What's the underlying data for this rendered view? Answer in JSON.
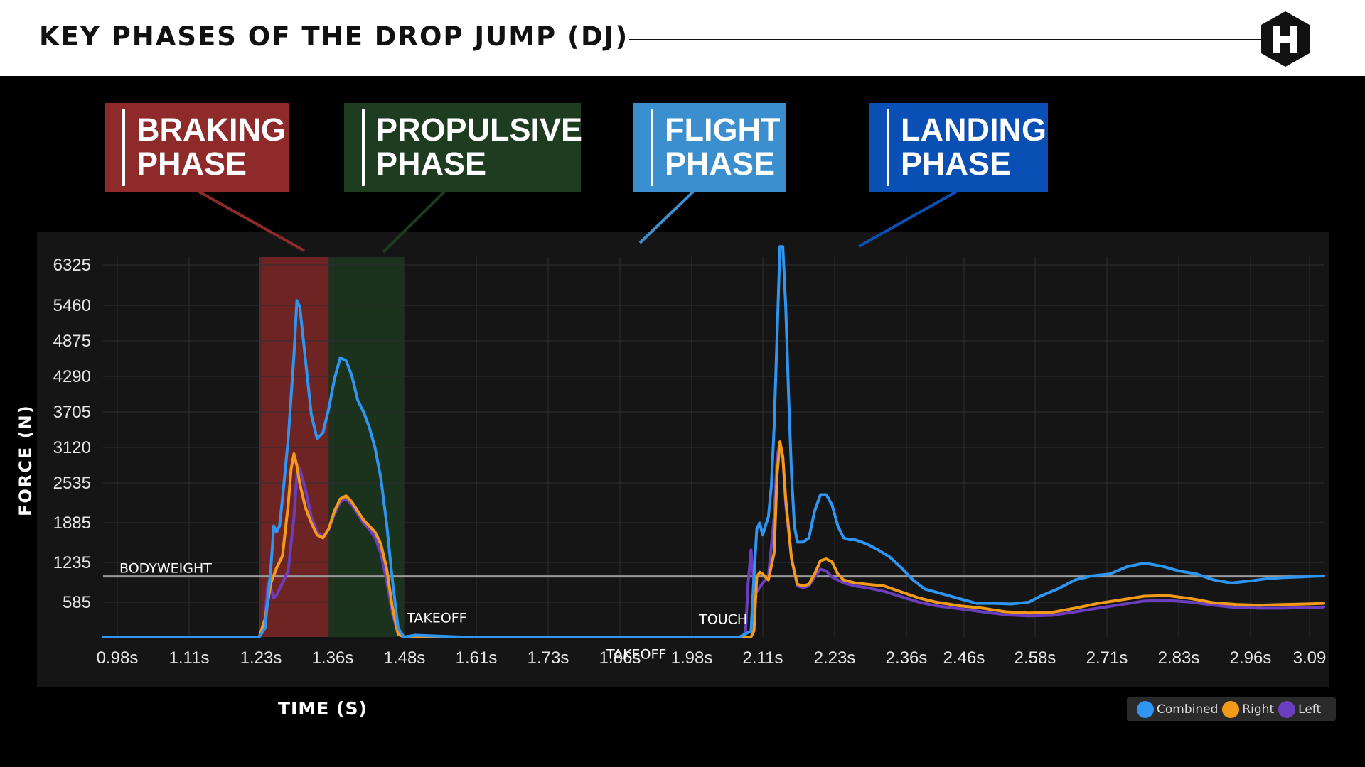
{
  "header": {
    "title": "KEY PHASES OF THE DROP JUMP (DJ)",
    "logo": "hexagon-h-logo"
  },
  "phases": [
    {
      "label": "BRAKING\nPHASE",
      "color": "#8e2a2a"
    },
    {
      "label": "PROPULSIVE\nPHASE",
      "color": "#1e3c20"
    },
    {
      "label": "FLIGHT\nPHASE",
      "color": "#3b8fce"
    },
    {
      "label": "LANDING\nPHASE",
      "color": "#0a4fb3"
    }
  ],
  "chart_data": {
    "type": "line",
    "ylabel": "FORCE (N)",
    "xlabel": "TIME (S)",
    "y_ticks": [
      "6325",
      "5460",
      "4875",
      "4290",
      "3705",
      "3120",
      "2535",
      "1885",
      "1235",
      "585"
    ],
    "x_ticks": [
      "0.98s",
      "1.11s",
      "1.23s",
      "1.36s",
      "1.48s",
      "1.61s",
      "1.73s",
      "1.86s",
      "1.98s",
      "2.11s",
      "2.23s",
      "2.36s",
      "2.46s",
      "2.58s",
      "2.71s",
      "2.83s",
      "2.96s",
      "3.09"
    ],
    "ylim": [
      0,
      6325
    ],
    "xlim": [
      0.98,
      3.09
    ],
    "grid": true,
    "legend_position": "bottom-right",
    "bodyweight": {
      "label": "BODYWEIGHT",
      "value": 1010
    },
    "shaded_regions": [
      {
        "x_start": 1.25,
        "x_end": 1.37,
        "color": "#8e2a2a"
      },
      {
        "x_start": 1.37,
        "x_end": 1.5,
        "color": "#1e3c20"
      }
    ],
    "annotations": [
      {
        "text": "TAKEOFF",
        "x": 1.505,
        "y": 240
      },
      {
        "text": "TOUCH",
        "x": 2.01,
        "y": 220
      },
      {
        "text": "TAKEOFF",
        "x": 1.85,
        "y": -360
      }
    ],
    "series": [
      {
        "name": "Combined",
        "color": "#2e95f0",
        "points": [
          [
            0.98,
            0
          ],
          [
            1.25,
            0
          ],
          [
            1.26,
            150
          ],
          [
            1.27,
            1150
          ],
          [
            1.275,
            1850
          ],
          [
            1.28,
            1750
          ],
          [
            1.285,
            1850
          ],
          [
            1.29,
            2300
          ],
          [
            1.3,
            3300
          ],
          [
            1.31,
            4700
          ],
          [
            1.315,
            5600
          ],
          [
            1.32,
            5500
          ],
          [
            1.33,
            4600
          ],
          [
            1.34,
            3700
          ],
          [
            1.35,
            3300
          ],
          [
            1.36,
            3400
          ],
          [
            1.37,
            3800
          ],
          [
            1.38,
            4300
          ],
          [
            1.39,
            4650
          ],
          [
            1.4,
            4600
          ],
          [
            1.41,
            4350
          ],
          [
            1.42,
            3950
          ],
          [
            1.43,
            3750
          ],
          [
            1.44,
            3500
          ],
          [
            1.45,
            3150
          ],
          [
            1.46,
            2650
          ],
          [
            1.47,
            1900
          ],
          [
            1.48,
            950
          ],
          [
            1.49,
            150
          ],
          [
            1.5,
            0
          ],
          [
            1.52,
            30
          ],
          [
            1.6,
            0
          ],
          [
            2.08,
            0
          ],
          [
            2.1,
            100
          ],
          [
            2.105,
            1000
          ],
          [
            2.11,
            1800
          ],
          [
            2.115,
            1900
          ],
          [
            2.12,
            1700
          ],
          [
            2.125,
            1850
          ],
          [
            2.13,
            2000
          ],
          [
            2.135,
            2500
          ],
          [
            2.14,
            3500
          ],
          [
            2.145,
            5000
          ],
          [
            2.15,
            6500
          ],
          [
            2.155,
            6500
          ],
          [
            2.16,
            5500
          ],
          [
            2.165,
            4000
          ],
          [
            2.17,
            2700
          ],
          [
            2.175,
            1850
          ],
          [
            2.18,
            1580
          ],
          [
            2.19,
            1580
          ],
          [
            2.2,
            1650
          ],
          [
            2.21,
            2100
          ],
          [
            2.22,
            2370
          ],
          [
            2.23,
            2370
          ],
          [
            2.24,
            2200
          ],
          [
            2.25,
            1850
          ],
          [
            2.26,
            1650
          ],
          [
            2.27,
            1620
          ],
          [
            2.28,
            1620
          ],
          [
            2.3,
            1550
          ],
          [
            2.32,
            1450
          ],
          [
            2.34,
            1330
          ],
          [
            2.36,
            1150
          ],
          [
            2.38,
            950
          ],
          [
            2.4,
            800
          ],
          [
            2.43,
            720
          ],
          [
            2.46,
            640
          ],
          [
            2.49,
            560
          ],
          [
            2.52,
            560
          ],
          [
            2.55,
            550
          ],
          [
            2.58,
            580
          ],
          [
            2.6,
            680
          ],
          [
            2.63,
            800
          ],
          [
            2.66,
            950
          ],
          [
            2.69,
            1020
          ],
          [
            2.72,
            1050
          ],
          [
            2.75,
            1170
          ],
          [
            2.78,
            1230
          ],
          [
            2.81,
            1180
          ],
          [
            2.84,
            1100
          ],
          [
            2.87,
            1050
          ],
          [
            2.9,
            950
          ],
          [
            2.93,
            900
          ],
          [
            2.96,
            930
          ],
          [
            2.99,
            970
          ],
          [
            3.02,
            990
          ],
          [
            3.05,
            1000
          ],
          [
            3.09,
            1020
          ]
        ]
      },
      {
        "name": "Right",
        "color": "#f39a1a",
        "points": [
          [
            0.98,
            0
          ],
          [
            1.25,
            0
          ],
          [
            1.26,
            300
          ],
          [
            1.27,
            900
          ],
          [
            1.28,
            1150
          ],
          [
            1.29,
            1350
          ],
          [
            1.3,
            2200
          ],
          [
            1.305,
            2800
          ],
          [
            1.31,
            3050
          ],
          [
            1.315,
            2850
          ],
          [
            1.32,
            2550
          ],
          [
            1.33,
            2150
          ],
          [
            1.34,
            1900
          ],
          [
            1.35,
            1700
          ],
          [
            1.36,
            1650
          ],
          [
            1.37,
            1800
          ],
          [
            1.38,
            2100
          ],
          [
            1.39,
            2300
          ],
          [
            1.4,
            2350
          ],
          [
            1.41,
            2250
          ],
          [
            1.42,
            2100
          ],
          [
            1.43,
            1950
          ],
          [
            1.44,
            1850
          ],
          [
            1.45,
            1750
          ],
          [
            1.46,
            1550
          ],
          [
            1.47,
            1150
          ],
          [
            1.48,
            500
          ],
          [
            1.49,
            50
          ],
          [
            1.5,
            0
          ],
          [
            2.1,
            0
          ],
          [
            2.105,
            100
          ],
          [
            2.11,
            1000
          ],
          [
            2.115,
            1080
          ],
          [
            2.12,
            1050
          ],
          [
            2.13,
            950
          ],
          [
            2.14,
            1400
          ],
          [
            2.145,
            2700
          ],
          [
            2.15,
            3250
          ],
          [
            2.155,
            3000
          ],
          [
            2.16,
            2300
          ],
          [
            2.17,
            1300
          ],
          [
            2.18,
            880
          ],
          [
            2.19,
            850
          ],
          [
            2.2,
            880
          ],
          [
            2.21,
            1050
          ],
          [
            2.22,
            1270
          ],
          [
            2.23,
            1300
          ],
          [
            2.24,
            1250
          ],
          [
            2.25,
            1050
          ],
          [
            2.26,
            950
          ],
          [
            2.28,
            900
          ],
          [
            2.3,
            880
          ],
          [
            2.33,
            850
          ],
          [
            2.36,
            750
          ],
          [
            2.39,
            650
          ],
          [
            2.42,
            580
          ],
          [
            2.46,
            520
          ],
          [
            2.5,
            480
          ],
          [
            2.54,
            420
          ],
          [
            2.58,
            400
          ],
          [
            2.62,
            410
          ],
          [
            2.66,
            480
          ],
          [
            2.7,
            560
          ],
          [
            2.74,
            620
          ],
          [
            2.78,
            680
          ],
          [
            2.82,
            690
          ],
          [
            2.86,
            640
          ],
          [
            2.9,
            570
          ],
          [
            2.94,
            540
          ],
          [
            2.98,
            530
          ],
          [
            3.02,
            540
          ],
          [
            3.06,
            550
          ],
          [
            3.09,
            560
          ]
        ]
      },
      {
        "name": "Left",
        "color": "#6b3ec0",
        "points": [
          [
            0.98,
            0
          ],
          [
            1.25,
            0
          ],
          [
            1.26,
            300
          ],
          [
            1.265,
            900
          ],
          [
            1.27,
            800
          ],
          [
            1.275,
            650
          ],
          [
            1.28,
            700
          ],
          [
            1.29,
            900
          ],
          [
            1.3,
            1100
          ],
          [
            1.31,
            2000
          ],
          [
            1.315,
            2700
          ],
          [
            1.32,
            2800
          ],
          [
            1.33,
            2450
          ],
          [
            1.34,
            2000
          ],
          [
            1.35,
            1750
          ],
          [
            1.36,
            1650
          ],
          [
            1.37,
            1800
          ],
          [
            1.38,
            2050
          ],
          [
            1.39,
            2250
          ],
          [
            1.4,
            2300
          ],
          [
            1.41,
            2200
          ],
          [
            1.42,
            2050
          ],
          [
            1.43,
            1900
          ],
          [
            1.44,
            1800
          ],
          [
            1.45,
            1650
          ],
          [
            1.46,
            1400
          ],
          [
            1.47,
            950
          ],
          [
            1.48,
            400
          ],
          [
            1.49,
            50
          ],
          [
            1.5,
            0
          ],
          [
            2.09,
            0
          ],
          [
            2.095,
            900
          ],
          [
            2.1,
            1450
          ],
          [
            2.105,
            900
          ],
          [
            2.11,
            750
          ],
          [
            2.12,
            900
          ],
          [
            2.13,
            1000
          ],
          [
            2.14,
            2000
          ],
          [
            2.145,
            3000
          ],
          [
            2.15,
            3250
          ],
          [
            2.155,
            3000
          ],
          [
            2.16,
            2200
          ],
          [
            2.17,
            1300
          ],
          [
            2.18,
            850
          ],
          [
            2.19,
            820
          ],
          [
            2.2,
            850
          ],
          [
            2.21,
            1000
          ],
          [
            2.22,
            1130
          ],
          [
            2.23,
            1100
          ],
          [
            2.24,
            1000
          ],
          [
            2.26,
            900
          ],
          [
            2.28,
            850
          ],
          [
            2.3,
            820
          ],
          [
            2.33,
            760
          ],
          [
            2.36,
            670
          ],
          [
            2.39,
            580
          ],
          [
            2.42,
            520
          ],
          [
            2.46,
            470
          ],
          [
            2.5,
            420
          ],
          [
            2.54,
            370
          ],
          [
            2.58,
            350
          ],
          [
            2.62,
            360
          ],
          [
            2.66,
            420
          ],
          [
            2.7,
            480
          ],
          [
            2.74,
            540
          ],
          [
            2.78,
            600
          ],
          [
            2.82,
            610
          ],
          [
            2.86,
            580
          ],
          [
            2.9,
            530
          ],
          [
            2.94,
            490
          ],
          [
            2.98,
            480
          ],
          [
            3.02,
            480
          ],
          [
            3.06,
            490
          ],
          [
            3.09,
            500
          ]
        ]
      }
    ]
  },
  "legend": {
    "items": [
      {
        "label": "Combined",
        "color": "#2e95f0"
      },
      {
        "label": "Right",
        "color": "#f39a1a"
      },
      {
        "label": "Left",
        "color": "#6b3ec0"
      }
    ]
  }
}
